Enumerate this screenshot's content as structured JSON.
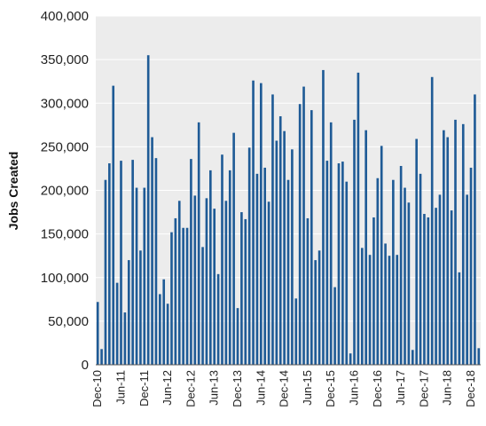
{
  "chart_data": {
    "type": "bar",
    "title": "",
    "xlabel": "",
    "ylabel": "Jobs Created",
    "ylim": [
      0,
      400000
    ],
    "y_ticks": [
      0,
      50000,
      100000,
      150000,
      200000,
      250000,
      300000,
      350000,
      400000
    ],
    "y_tick_labels": [
      "0",
      "50,000",
      "100,000",
      "150,000",
      "200,000",
      "250,000",
      "300,000",
      "350,000",
      "400,000"
    ],
    "x_tick_labels": [
      {
        "label": "Dec-10",
        "index": 0
      },
      {
        "label": "Jun-11",
        "index": 6
      },
      {
        "label": "Dec-11",
        "index": 12
      },
      {
        "label": "Jun-12",
        "index": 18
      },
      {
        "label": "Dec-12",
        "index": 24
      },
      {
        "label": "Jun-13",
        "index": 30
      },
      {
        "label": "Dec-13",
        "index": 36
      },
      {
        "label": "Jun-14",
        "index": 42
      },
      {
        "label": "Dec-14",
        "index": 48
      },
      {
        "label": "Jun-15",
        "index": 54
      },
      {
        "label": "Dec-15",
        "index": 60
      },
      {
        "label": "Jun-16",
        "index": 66
      },
      {
        "label": "Dec-16",
        "index": 72
      },
      {
        "label": "Jun-17",
        "index": 78
      },
      {
        "label": "Dec-17",
        "index": 84
      },
      {
        "label": "Jun-18",
        "index": 90
      },
      {
        "label": "Dec-18",
        "index": 96
      }
    ],
    "grid": true,
    "legend": "none",
    "bar_color": "#1f5b96",
    "plot_background": "#ececec",
    "values": [
      72000,
      18000,
      212000,
      231000,
      320000,
      94000,
      234000,
      60000,
      120000,
      235000,
      203000,
      131000,
      203000,
      355000,
      261000,
      237000,
      81000,
      98000,
      70000,
      152000,
      168000,
      188000,
      157000,
      157000,
      236000,
      194000,
      278000,
      135000,
      191000,
      223000,
      179000,
      104000,
      241000,
      188000,
      223000,
      266000,
      65000,
      175000,
      167000,
      249000,
      326000,
      219000,
      323000,
      226000,
      187000,
      310000,
      257000,
      285000,
      268000,
      212000,
      247000,
      76000,
      299000,
      319000,
      168000,
      292000,
      120000,
      131000,
      338000,
      234000,
      278000,
      89000,
      231000,
      233000,
      210000,
      13000,
      281000,
      335000,
      134000,
      269000,
      126000,
      169000,
      214000,
      251000,
      139000,
      125000,
      212000,
      126000,
      228000,
      203000,
      186000,
      17000,
      259000,
      219000,
      173000,
      169000,
      330000,
      180000,
      195000,
      269000,
      261000,
      177000,
      281000,
      106000,
      276000,
      195000,
      226000,
      310000,
      19000
    ]
  }
}
